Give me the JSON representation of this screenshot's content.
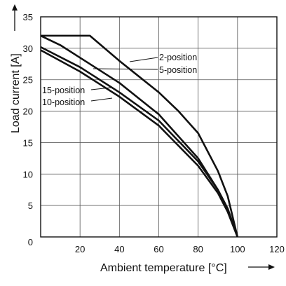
{
  "chart_data": {
    "type": "line",
    "xlabel": "Ambient temperature [°C]",
    "ylabel": "Load current [A]",
    "xlim": [
      0,
      120
    ],
    "ylim": [
      0,
      35
    ],
    "x_ticks": [
      0,
      20,
      40,
      60,
      80,
      100,
      120
    ],
    "y_ticks": [
      0,
      5,
      10,
      15,
      20,
      25,
      30,
      35
    ],
    "grid": true,
    "series": [
      {
        "name": "2-position",
        "x": [
          0,
          25,
          40,
          60,
          70,
          80,
          90,
          95,
          100
        ],
        "y": [
          32,
          32,
          28,
          23,
          20,
          16.5,
          10.5,
          6.5,
          0
        ]
      },
      {
        "name": "5-position",
        "x": [
          0,
          10,
          20,
          40,
          60,
          80,
          90,
          95,
          100
        ],
        "y": [
          32,
          30.5,
          28.5,
          24.5,
          19.5,
          12.5,
          7.5,
          4.5,
          0
        ]
      },
      {
        "name": "15-position",
        "x": [
          0,
          20,
          40,
          60,
          80,
          90,
          95,
          100
        ],
        "y": [
          30.2,
          27,
          23,
          18.5,
          12,
          7.5,
          4.5,
          0
        ]
      },
      {
        "name": "10-position",
        "x": [
          0,
          20,
          40,
          60,
          80,
          90,
          95,
          100
        ],
        "y": [
          29.7,
          26.3,
          22.3,
          17.7,
          11.3,
          7,
          4,
          0
        ]
      }
    ]
  }
}
